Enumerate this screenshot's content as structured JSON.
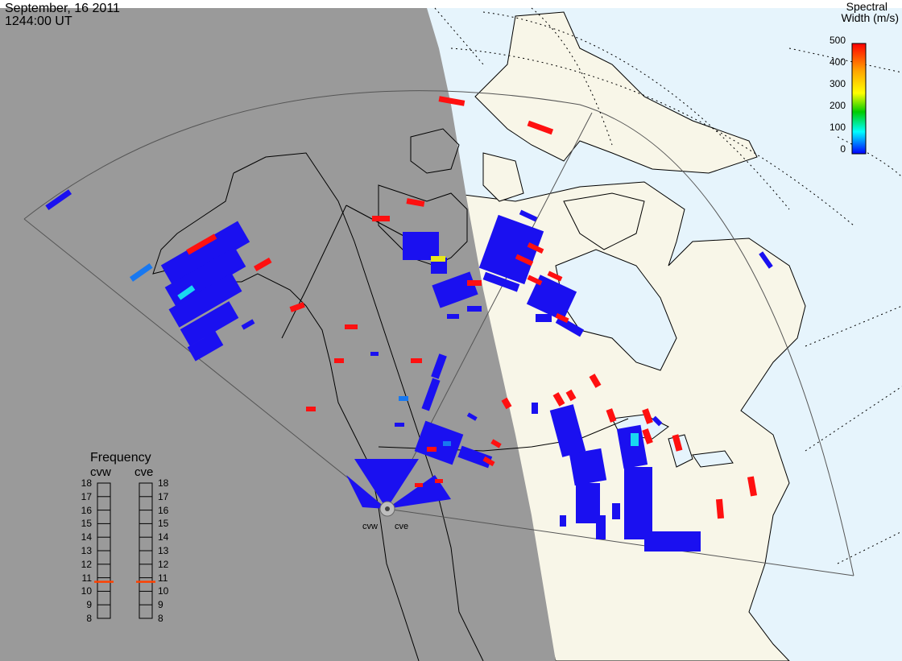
{
  "header": {
    "date": "September, 16 2011",
    "time": "1244:00 UT"
  },
  "colorbar": {
    "title_line1": "Spectral",
    "title_line2": "Width (m/s)",
    "ticks": [
      "500",
      "400",
      "300",
      "200",
      "100",
      "0"
    ],
    "stops": [
      "#ff0000",
      "#ffa500",
      "#ffff00",
      "#00cc00",
      "#00ffff",
      "#0000ff"
    ]
  },
  "frequency_panel": {
    "title": "Frequency",
    "columns": [
      {
        "label": "cvw",
        "current_mhz": 10.7
      },
      {
        "label": "cve",
        "current_mhz": 10.7
      }
    ],
    "ticks": [
      "18",
      "17",
      "16",
      "15",
      "14",
      "13",
      "12",
      "11",
      "10",
      "9",
      "8"
    ],
    "marker_color": "#ff4000"
  },
  "radars": [
    {
      "label": "cvw"
    },
    {
      "label": "cve"
    }
  ],
  "colors": {
    "night": "#9a9a9a",
    "day_ocean": "#e6f4fc",
    "day_land": "#f8f6e8",
    "scatter_low": "#1a10f0",
    "scatter_high": "#ff1010"
  }
}
